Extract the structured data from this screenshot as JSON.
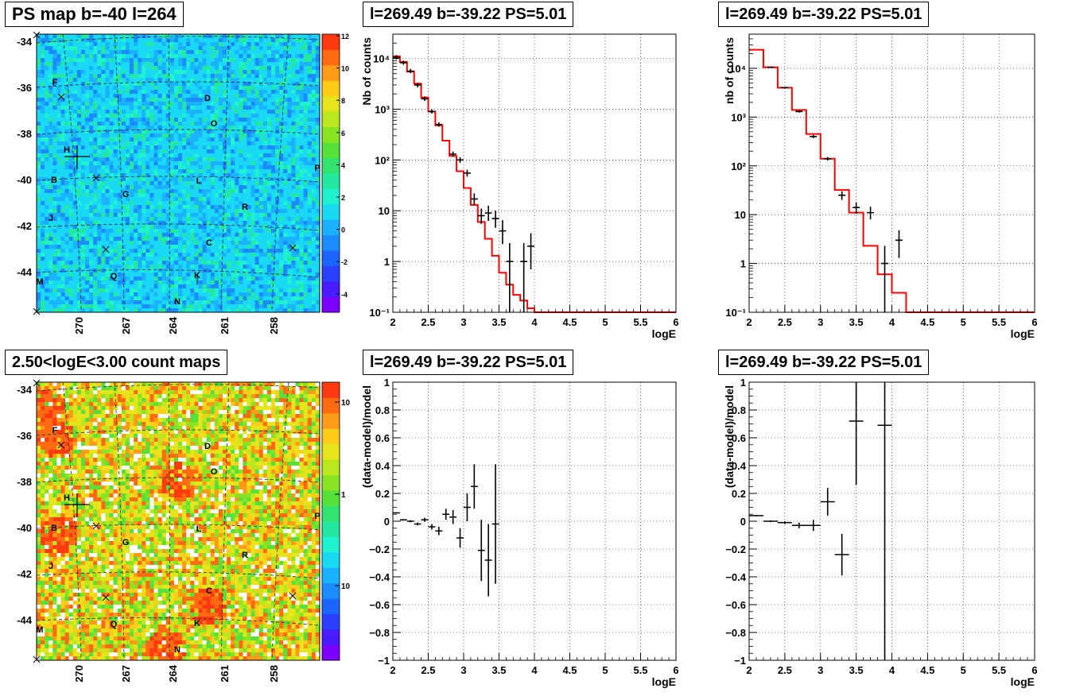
{
  "chart_data": [
    {
      "id": "ps-map",
      "type": "heatmap",
      "title": "PS map b=-40 l=264",
      "y_ticks": [
        "-34",
        "-36",
        "-38",
        "-40",
        "-42",
        "-44"
      ],
      "x_ticks": [
        "270",
        "267",
        "264",
        "261",
        "258"
      ],
      "colorbar_ticks": [
        "12",
        "10",
        "8",
        "6",
        "4",
        "2",
        "0",
        "-2",
        "-4"
      ],
      "sources": [
        "F",
        "D",
        "O",
        "H",
        "B",
        "G",
        "L",
        "P",
        "J",
        "R",
        "C",
        "M",
        "Q",
        "K",
        "N"
      ],
      "palette": [
        "#7b00ff",
        "#4a1bff",
        "#2a3fff",
        "#1a66ff",
        "#1a8cff",
        "#1ab2ff",
        "#19d9f5",
        "#1ff2cf",
        "#22e8a0",
        "#33e36f",
        "#55e03a",
        "#88e322",
        "#b9e81e",
        "#e6e51c",
        "#ffcc19",
        "#ff9b16",
        "#ff6a12",
        "#ff3a10"
      ]
    },
    {
      "id": "count-map",
      "type": "heatmap",
      "title": "2.50<logE<3.00 count maps",
      "y_ticks": [
        "-34",
        "-36",
        "-38",
        "-40",
        "-42",
        "-44"
      ],
      "x_ticks": [
        "270",
        "267",
        "264",
        "261",
        "258"
      ],
      "colorbar_ticks": [
        "10",
        "1",
        "10⁻¹"
      ],
      "sources": [
        "F",
        "D",
        "O",
        "H",
        "B",
        "G",
        "L",
        "P",
        "J",
        "R",
        "C",
        "M",
        "Q",
        "K",
        "N"
      ]
    },
    {
      "id": "spectrum-1",
      "type": "line",
      "title": "l=269.49 b=-39.22 PS=5.01",
      "xlabel": "logE",
      "ylabel": "Nb of counts",
      "xlim": [
        2,
        6
      ],
      "ylim": [
        0.1,
        30000
      ],
      "yscale": "log",
      "x_ticks": [
        "2",
        "2.5",
        "3",
        "3.5",
        "4",
        "4.5",
        "5",
        "5.5",
        "6"
      ],
      "y_ticks": [
        {
          "v": 0.1,
          "t": "10⁻¹"
        },
        {
          "v": 1,
          "t": "1"
        },
        {
          "v": 10,
          "t": "10"
        },
        {
          "v": 100,
          "t": "10²"
        },
        {
          "v": 1000,
          "t": "10³"
        },
        {
          "v": 10000,
          "t": "10⁴"
        }
      ],
      "model_edges": [
        2,
        2.1,
        2.2,
        2.3,
        2.4,
        2.5,
        2.6,
        2.7,
        2.8,
        2.9,
        3.0,
        3.1,
        3.2,
        3.3,
        3.4,
        3.5,
        3.6,
        3.7,
        3.8,
        3.9,
        4.0,
        4.1,
        6.0
      ],
      "model_values": [
        11000,
        8500,
        5500,
        3200,
        1700,
        900,
        480,
        240,
        120,
        60,
        28,
        13,
        6,
        2.8,
        1.3,
        0.6,
        0.35,
        0.22,
        0.17,
        0.12,
        0.1,
        0.1
      ],
      "data_points": [
        {
          "x": 2.05,
          "y": 10500,
          "lo": 9500,
          "hi": 11600
        },
        {
          "x": 2.15,
          "y": 8200,
          "lo": 7500,
          "hi": 9000
        },
        {
          "x": 2.25,
          "y": 5600,
          "lo": 5100,
          "hi": 6200
        },
        {
          "x": 2.35,
          "y": 3000,
          "lo": 2700,
          "hi": 3300
        },
        {
          "x": 2.45,
          "y": 1600,
          "lo": 1450,
          "hi": 1780
        },
        {
          "x": 2.55,
          "y": 900,
          "lo": 820,
          "hi": 990
        },
        {
          "x": 2.65,
          "y": 500,
          "lo": 450,
          "hi": 550
        },
        {
          "x": 2.85,
          "y": 130,
          "lo": 115,
          "hi": 146
        },
        {
          "x": 2.95,
          "y": 100,
          "lo": 88,
          "hi": 113
        },
        {
          "x": 3.05,
          "y": 55,
          "lo": 47,
          "hi": 64
        },
        {
          "x": 3.15,
          "y": 17,
          "lo": 13,
          "hi": 22
        },
        {
          "x": 3.25,
          "y": 8,
          "lo": 5.5,
          "hi": 11
        },
        {
          "x": 3.35,
          "y": 9,
          "lo": 6.3,
          "hi": 12.5
        },
        {
          "x": 3.45,
          "y": 7,
          "lo": 4.6,
          "hi": 10
        },
        {
          "x": 3.55,
          "y": 4,
          "lo": 2.2,
          "hi": 6.5
        },
        {
          "x": 3.65,
          "y": 1,
          "lo": 0.1,
          "hi": 2.3
        },
        {
          "x": 3.85,
          "y": 1,
          "lo": 0.1,
          "hi": 2.3
        },
        {
          "x": 3.95,
          "y": 2,
          "lo": 0.7,
          "hi": 3.6
        }
      ]
    },
    {
      "id": "spectrum-2",
      "type": "line",
      "title": "l=269.49 b=-39.22 PS=5.01",
      "xlabel": "logE",
      "ylabel": "nb of counts",
      "xlim": [
        2,
        6
      ],
      "ylim": [
        0.1,
        50000
      ],
      "yscale": "log",
      "x_ticks": [
        "2",
        "2.5",
        "3",
        "3.5",
        "4",
        "4.5",
        "5",
        "5.5",
        "6"
      ],
      "y_ticks": [
        {
          "v": 0.1,
          "t": "10⁻¹"
        },
        {
          "v": 1,
          "t": "1"
        },
        {
          "v": 10,
          "t": "10"
        },
        {
          "v": 100,
          "t": "10²"
        },
        {
          "v": 1000,
          "t": "10³"
        },
        {
          "v": 10000,
          "t": "10⁴"
        }
      ],
      "model_edges": [
        2,
        2.2,
        2.4,
        2.6,
        2.8,
        3.0,
        3.2,
        3.4,
        3.6,
        3.8,
        4.0,
        4.2,
        6.0
      ],
      "model_values": [
        24000,
        10500,
        4000,
        1400,
        450,
        140,
        32,
        11,
        2.3,
        0.6,
        0.25,
        0.1
      ],
      "data_points": [
        {
          "x": 2.3,
          "y": 10500,
          "lo": 10200,
          "hi": 10800
        },
        {
          "x": 2.5,
          "y": 4000,
          "lo": 3850,
          "hi": 4150
        },
        {
          "x": 2.7,
          "y": 1300,
          "lo": 1230,
          "hi": 1370
        },
        {
          "x": 2.9,
          "y": 400,
          "lo": 370,
          "hi": 430
        },
        {
          "x": 3.1,
          "y": 140,
          "lo": 128,
          "hi": 152
        },
        {
          "x": 3.3,
          "y": 25,
          "lo": 20,
          "hi": 30
        },
        {
          "x": 3.5,
          "y": 14,
          "lo": 10.5,
          "hi": 18
        },
        {
          "x": 3.7,
          "y": 11,
          "lo": 8,
          "hi": 14.5
        },
        {
          "x": 3.9,
          "y": 1,
          "lo": 0.1,
          "hi": 2.3
        },
        {
          "x": 4.1,
          "y": 3,
          "lo": 1.3,
          "hi": 4.8
        }
      ]
    },
    {
      "id": "residual-1",
      "type": "scatter",
      "title": "l=269.49 b=-39.22 PS=5.01",
      "xlabel": "logE",
      "ylabel": "(data-model)/model",
      "xlim": [
        2,
        6
      ],
      "ylim": [
        -1,
        1
      ],
      "x_ticks": [
        "2",
        "2.5",
        "3",
        "3.5",
        "4",
        "4.5",
        "5",
        "5.5",
        "6"
      ],
      "y_ticks": [
        {
          "v": -1,
          "t": "−1"
        },
        {
          "v": -0.8,
          "t": "−0.8"
        },
        {
          "v": -0.6,
          "t": "−0.6"
        },
        {
          "v": -0.4,
          "t": "−0.4"
        },
        {
          "v": -0.2,
          "t": "−0.2"
        },
        {
          "v": 0,
          "t": "0"
        },
        {
          "v": 0.2,
          "t": "0.2"
        },
        {
          "v": 0.4,
          "t": "0.4"
        },
        {
          "v": 0.6,
          "t": "0.6"
        },
        {
          "v": 0.8,
          "t": "0.8"
        },
        {
          "v": 1,
          "t": "1"
        }
      ],
      "bar_halfwidth": 0.05,
      "data_points": [
        {
          "x": 2.05,
          "y": 0.06,
          "e": 0.005
        },
        {
          "x": 2.15,
          "y": 0.01,
          "e": 0.006
        },
        {
          "x": 2.25,
          "y": 0.0,
          "e": 0.008
        },
        {
          "x": 2.35,
          "y": -0.02,
          "e": 0.01
        },
        {
          "x": 2.45,
          "y": 0.01,
          "e": 0.015
        },
        {
          "x": 2.55,
          "y": -0.04,
          "e": 0.02
        },
        {
          "x": 2.65,
          "y": -0.07,
          "e": 0.03
        },
        {
          "x": 2.75,
          "y": 0.05,
          "e": 0.04
        },
        {
          "x": 2.85,
          "y": 0.03,
          "e": 0.05
        },
        {
          "x": 2.95,
          "y": -0.12,
          "e": 0.07
        },
        {
          "x": 3.05,
          "y": 0.1,
          "e": 0.1
        },
        {
          "x": 3.15,
          "y": 0.25,
          "e": 0.16
        },
        {
          "x": 3.25,
          "y": -0.21,
          "e": 0.22
        },
        {
          "x": 3.35,
          "y": -0.28,
          "e": 0.26
        },
        {
          "x": 3.45,
          "y": -0.02,
          "e": 0.43
        }
      ]
    },
    {
      "id": "residual-2",
      "type": "scatter",
      "title": "l=269.49 b=-39.22 PS=5.01",
      "xlabel": "logE",
      "ylabel": "(data-model)/model",
      "xlim": [
        2,
        6
      ],
      "ylim": [
        -1,
        1
      ],
      "x_ticks": [
        "2",
        "2.5",
        "3",
        "3.5",
        "4",
        "4.5",
        "5",
        "5.5",
        "6"
      ],
      "y_ticks": [
        {
          "v": -1,
          "t": "−1"
        },
        {
          "v": -0.8,
          "t": "−0.8"
        },
        {
          "v": -0.6,
          "t": "−0.6"
        },
        {
          "v": -0.4,
          "t": "−0.4"
        },
        {
          "v": -0.2,
          "t": "−0.2"
        },
        {
          "v": 0,
          "t": "0"
        },
        {
          "v": 0.2,
          "t": "0.2"
        },
        {
          "v": 0.4,
          "t": "0.4"
        },
        {
          "v": 0.6,
          "t": "0.6"
        },
        {
          "v": 0.8,
          "t": "0.8"
        },
        {
          "v": 1,
          "t": "1"
        }
      ],
      "bar_halfwidth": 0.1,
      "data_points": [
        {
          "x": 2.1,
          "y": 0.04,
          "e": 0.005
        },
        {
          "x": 2.3,
          "y": 0.0,
          "e": 0.006
        },
        {
          "x": 2.5,
          "y": -0.01,
          "e": 0.01
        },
        {
          "x": 2.7,
          "y": -0.03,
          "e": 0.02
        },
        {
          "x": 2.9,
          "y": -0.03,
          "e": 0.04
        },
        {
          "x": 3.1,
          "y": 0.14,
          "e": 0.1
        },
        {
          "x": 3.3,
          "y": -0.24,
          "e": 0.15
        },
        {
          "x": 3.5,
          "y": 0.72,
          "e": 0.46
        },
        {
          "x": 3.9,
          "y": 0.69,
          "e": 1.9
        }
      ]
    }
  ]
}
